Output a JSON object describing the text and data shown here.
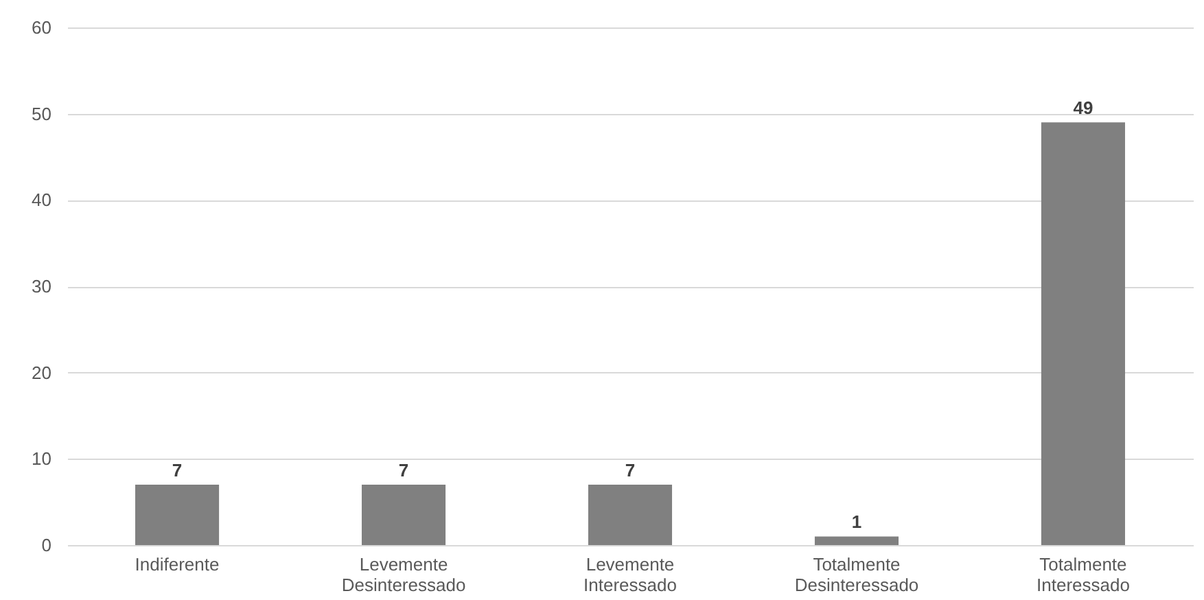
{
  "chart_data": {
    "type": "bar",
    "categories": [
      "Indiferente",
      "Levemente Desinteressado",
      "Levemente Interessado",
      "Totalmente Desinteressado",
      "Totalmente Interessado"
    ],
    "values": [
      7,
      7,
      7,
      1,
      49
    ],
    "color": "#808080",
    "ylim": [
      0,
      60
    ],
    "yticks": [
      0,
      10,
      20,
      30,
      40,
      50,
      60
    ],
    "grid": "y",
    "data_labels": true
  }
}
